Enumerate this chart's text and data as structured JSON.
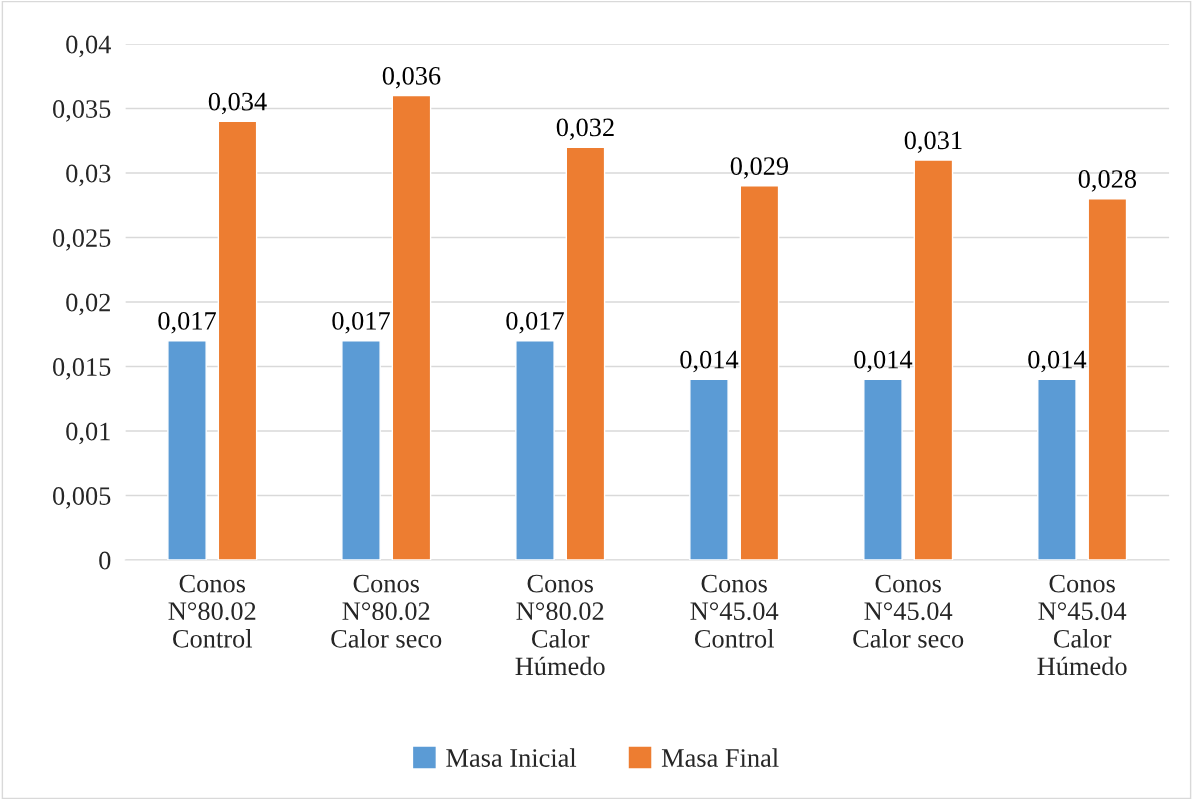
{
  "chart_data": {
    "type": "bar",
    "categories": [
      "Conos\nN°80.02\nControl",
      "Conos\nN°80.02\nCalor seco",
      "Conos\nN°80.02\nCalor\nHúmedo",
      "Conos\nN°45.04\nControl",
      "Conos\nN°45.04\nCalor seco",
      "Conos\nN°45.04\nCalor\nHúmedo"
    ],
    "series": [
      {
        "name": "Masa Inicial",
        "color": "#5b9bd5",
        "values": [
          0.017,
          0.017,
          0.017,
          0.014,
          0.014,
          0.014
        ],
        "value_labels": [
          "0,017",
          "0,017",
          "0,017",
          "0,014",
          "0,014",
          "0,014"
        ]
      },
      {
        "name": "Masa Final",
        "color": "#ed7d31",
        "values": [
          0.034,
          0.036,
          0.032,
          0.029,
          0.031,
          0.028
        ],
        "value_labels": [
          "0,034",
          "0,036",
          "0,032",
          "0,029",
          "0,031",
          "0,028"
        ]
      }
    ],
    "ylim": [
      0,
      0.04
    ],
    "yticks": [
      0,
      {
        "value": 0.005,
        "label": "0,005"
      },
      {
        "value": 0.01,
        "label": "0,01"
      },
      {
        "value": 0.015,
        "label": "0,015"
      },
      {
        "value": 0.02,
        "label": "0,02"
      },
      {
        "value": 0.025,
        "label": "0,025"
      },
      {
        "value": 0.03,
        "label": "0,03"
      },
      {
        "value": 0.035,
        "label": "0,035"
      },
      {
        "value": 0.04,
        "label": "0,04"
      }
    ],
    "grid": "y",
    "legend": "bottom"
  }
}
